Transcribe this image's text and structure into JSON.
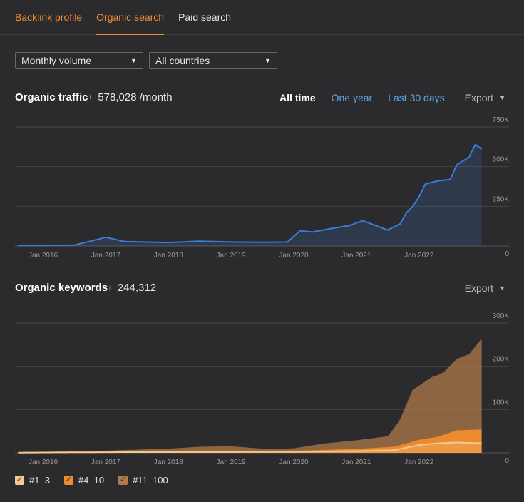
{
  "tabs": [
    {
      "label": "Backlink profile"
    },
    {
      "label": "Organic search"
    },
    {
      "label": "Paid search"
    }
  ],
  "filters": {
    "volume": "Monthly volume",
    "country": "All countries"
  },
  "traffic": {
    "title": "Organic traffic",
    "info": "i",
    "value": "578,028 /month",
    "ranges": [
      "All time",
      "One year",
      "Last 30 days"
    ],
    "export": "Export"
  },
  "keywords": {
    "title": "Organic keywords",
    "info": "i",
    "value": "244,312",
    "export": "Export"
  },
  "legend": [
    {
      "label": "#1–3",
      "color": "#f5c98c"
    },
    {
      "label": "#4–10",
      "color": "#f08c2e"
    },
    {
      "label": "#11–100",
      "color": "#b07a4a"
    }
  ],
  "chart_data": [
    {
      "type": "line",
      "title": "Organic traffic",
      "x_tick_labels": [
        "Jan 2016",
        "Jan 2017",
        "Jan 2018",
        "Jan 2019",
        "Jan 2020",
        "Jan 2021",
        "Jan 2022"
      ],
      "y_tick_labels": [
        "750K",
        "500K",
        "250K",
        "0"
      ],
      "ylim": [
        0,
        750000
      ],
      "color": "#3b7dd8",
      "series": [
        {
          "x": [
            2015.6,
            2016.0,
            2016.5,
            2016.8,
            2017.0,
            2017.3,
            2017.6,
            2018.0,
            2018.5,
            2019.0,
            2019.5,
            2019.9,
            2020.1,
            2020.3,
            2020.6,
            2020.9,
            2021.1,
            2021.3,
            2021.5,
            2021.7,
            2021.8,
            2021.9,
            2022.0,
            2022.1,
            2022.3,
            2022.5,
            2022.6,
            2022.8,
            2022.9,
            2023.0
          ],
          "y": [
            3000,
            4000,
            6000,
            35000,
            55000,
            28000,
            25000,
            22000,
            30000,
            25000,
            24000,
            25000,
            95000,
            88000,
            110000,
            130000,
            160000,
            130000,
            100000,
            140000,
            210000,
            250000,
            310000,
            390000,
            410000,
            420000,
            510000,
            560000,
            640000,
            610000
          ]
        }
      ]
    },
    {
      "type": "area",
      "title": "Organic keywords",
      "x_tick_labels": [
        "Jan 2016",
        "Jan 2017",
        "Jan 2018",
        "Jan 2019",
        "Jan 2020",
        "Jan 2021",
        "Jan 2022"
      ],
      "y_tick_labels": [
        "300K",
        "200K",
        "100K",
        "0"
      ],
      "ylim": [
        0,
        300000
      ],
      "stacked": true,
      "series": [
        {
          "name": "#1–3",
          "color": "#f5c98c",
          "x": [
            2015.6,
            2017.0,
            2018.5,
            2020.0,
            2021.0,
            2021.6,
            2021.8,
            2022.0,
            2022.3,
            2022.6,
            2023.0
          ],
          "y": [
            500,
            1500,
            2000,
            2500,
            4000,
            6000,
            12000,
            18000,
            22000,
            24000,
            22000
          ]
        },
        {
          "name": "#4–10",
          "color": "#f08c2e",
          "x": [
            2015.6,
            2017.0,
            2018.5,
            2020.0,
            2021.0,
            2021.6,
            2021.8,
            2022.0,
            2022.3,
            2022.6,
            2023.0
          ],
          "y": [
            500,
            1500,
            2000,
            2000,
            5000,
            8000,
            10000,
            12000,
            15000,
            28000,
            32000
          ]
        },
        {
          "name": "#11–100",
          "color": "#b07a4a",
          "x": [
            2015.6,
            2017.0,
            2018.0,
            2018.5,
            2019.0,
            2019.6,
            2020.0,
            2020.5,
            2021.0,
            2021.5,
            2021.7,
            2021.9,
            2022.0,
            2022.2,
            2022.4,
            2022.6,
            2022.8,
            2023.0
          ],
          "y": [
            500,
            2000,
            6000,
            10000,
            11000,
            4000,
            6000,
            15000,
            20000,
            25000,
            60000,
            120000,
            125000,
            140000,
            145000,
            165000,
            175000,
            210000
          ]
        }
      ]
    }
  ]
}
